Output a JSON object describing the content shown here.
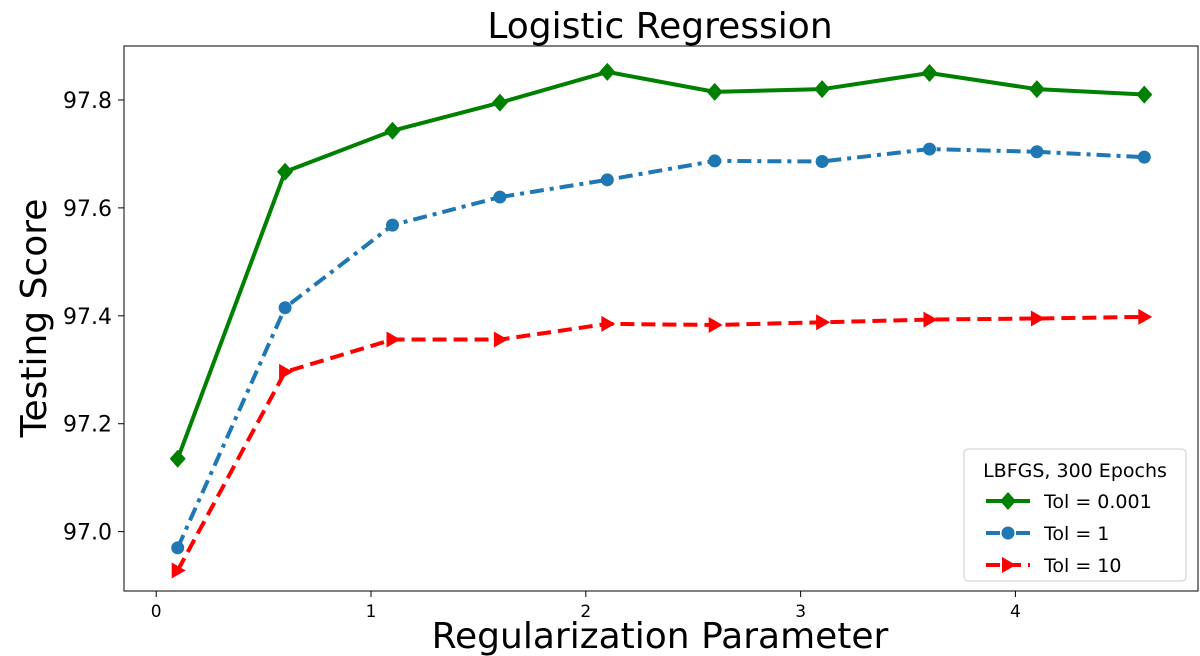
{
  "chart_data": {
    "type": "line",
    "title": "Logistic Regression",
    "xlabel": "Regularization Parameter",
    "ylabel": "Testing Score",
    "xlim": [
      -0.15,
      4.85
    ],
    "ylim": [
      96.89,
      97.9
    ],
    "xticks": [
      "0",
      "1",
      "2",
      "3",
      "4"
    ],
    "yticks": [
      "97.0",
      "97.2",
      "97.4",
      "97.6",
      "97.8"
    ],
    "grid": false,
    "legend": {
      "title": "LBFGS, 300 Epochs",
      "position": "bottom-right"
    },
    "x": [
      0.1,
      0.6,
      1.1,
      1.6,
      2.1,
      2.6,
      3.1,
      3.6,
      4.1,
      4.6
    ],
    "series": [
      {
        "name": "Tol = 0.001",
        "color": "#008000",
        "line_style": "solid",
        "marker": "diamond",
        "values": [
          97.135,
          97.667,
          97.743,
          97.795,
          97.852,
          97.815,
          97.82,
          97.85,
          97.82,
          97.81
        ]
      },
      {
        "name": "Tol = 1",
        "color": "#1f77b4",
        "line_style": "dashdot",
        "marker": "circle",
        "values": [
          96.97,
          97.415,
          97.568,
          97.62,
          97.652,
          97.687,
          97.686,
          97.709,
          97.704,
          97.694
        ]
      },
      {
        "name": "Tol = 10",
        "color": "#ff0000",
        "line_style": "dashed",
        "marker": "triangle-right",
        "values": [
          96.928,
          97.296,
          97.356,
          97.356,
          97.385,
          97.383,
          97.388,
          97.393,
          97.395,
          97.398
        ]
      }
    ]
  }
}
